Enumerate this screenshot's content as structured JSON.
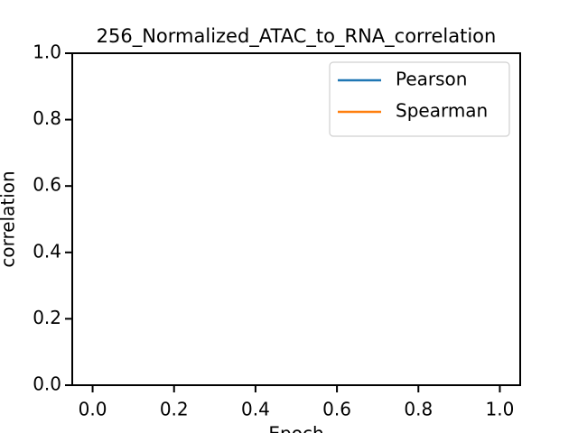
{
  "chart_data": {
    "type": "line",
    "title": "256_Normalized_ATAC_to_RNA_correlation",
    "x_label": "Epoch",
    "y_label": "correlation",
    "x": [],
    "series": [
      {
        "name": "Pearson",
        "color": "#1f77b4",
        "values": []
      },
      {
        "name": "Spearman",
        "color": "#ff7f0e",
        "values": []
      }
    ],
    "xlim": [
      -0.05,
      1.05
    ],
    "ylim": [
      0,
      1
    ],
    "xticks": [
      {
        "value": 0,
        "label": "0.0"
      },
      {
        "value": 0.2,
        "label": "0.2"
      },
      {
        "value": 0.4,
        "label": "0.4"
      },
      {
        "value": 0.6,
        "label": "0.6"
      },
      {
        "value": 0.8,
        "label": "0.8"
      },
      {
        "value": 1,
        "label": "1.0"
      }
    ],
    "yticks": [
      {
        "value": 0,
        "label": "0.0"
      },
      {
        "value": 0.2,
        "label": "0.2"
      },
      {
        "value": 0.4,
        "label": "0.4"
      },
      {
        "value": 0.6,
        "label": "0.6"
      },
      {
        "value": 0.8,
        "label": "0.8"
      },
      {
        "value": 1,
        "label": "1.0"
      }
    ],
    "grid": false,
    "legend": "upper right"
  }
}
